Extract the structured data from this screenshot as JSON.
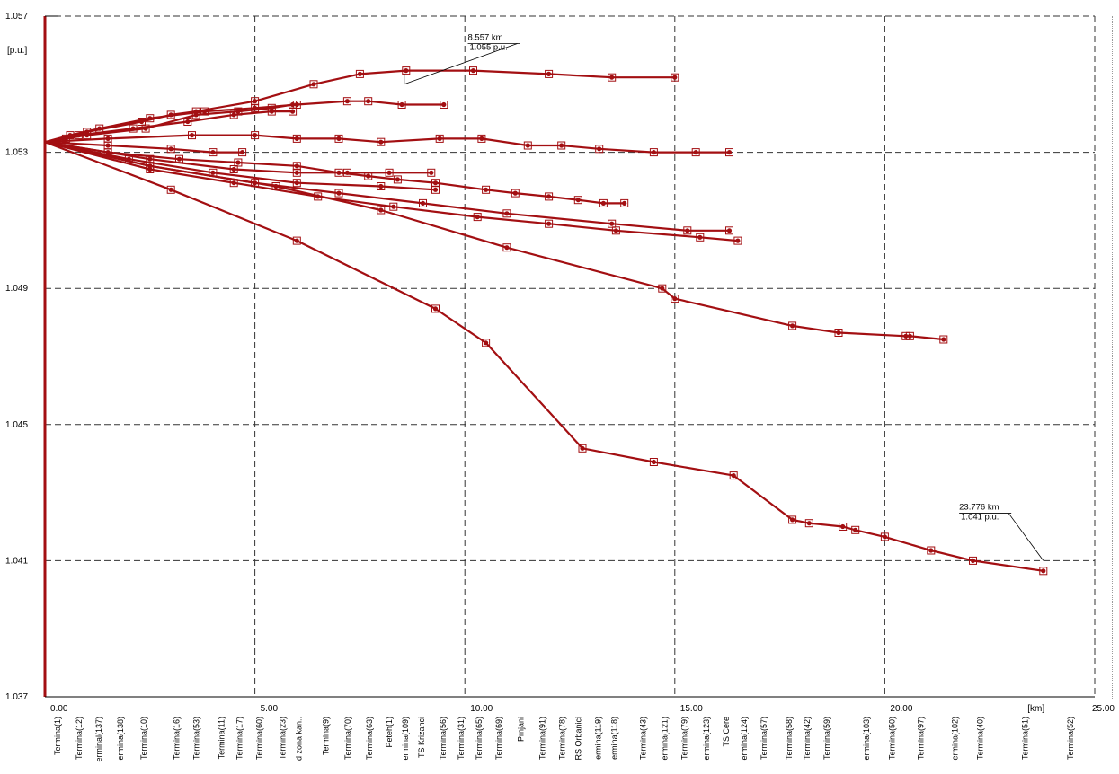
{
  "chart_data": {
    "type": "line",
    "title": "",
    "xlabel": "[km]",
    "ylabel": "[p.u.]",
    "xlim": [
      0,
      25
    ],
    "ylim": [
      1.037,
      1.057
    ],
    "x_ticks": [
      "0.00",
      "5.00",
      "10.00",
      "15.00",
      "20.00",
      "25.00"
    ],
    "x_tick_values": [
      0,
      5,
      10,
      15,
      20,
      25
    ],
    "y_ticks": [
      "1.037",
      "1.041",
      "1.045",
      "1.049",
      "1.053",
      "1.057"
    ],
    "y_tick_values": [
      1.037,
      1.041,
      1.045,
      1.049,
      1.053,
      1.057
    ],
    "grid": true,
    "line_color": "#a30f12",
    "series": [
      {
        "x": [
          0,
          0.5,
          1.0,
          2.3,
          3.0,
          3.6,
          5.0,
          6.4,
          7.5,
          8.6,
          10.2,
          12.0,
          13.5,
          15.0
        ],
        "y": [
          1.0533,
          1.0534,
          1.0536,
          1.0539,
          1.0541,
          1.0542,
          1.0545,
          1.055,
          1.0553,
          1.0554,
          1.0554,
          1.0553,
          1.0552,
          1.0552
        ]
      },
      {
        "x": [
          0,
          0.6,
          1.3,
          2.5,
          3.8,
          5.0,
          6.0,
          7.2,
          7.7,
          8.5,
          9.5
        ],
        "y": [
          1.0533,
          1.0535,
          1.0537,
          1.054,
          1.0542,
          1.0543,
          1.0544,
          1.0545,
          1.0545,
          1.0544,
          1.0544
        ]
      },
      {
        "x": [
          0,
          1.0,
          2.4,
          3.6,
          4.6,
          5.4,
          5.9
        ],
        "y": [
          1.0533,
          1.0535,
          1.0537,
          1.0541,
          1.0542,
          1.0543,
          1.0544
        ]
      },
      {
        "x": [
          0,
          0.8,
          2.1,
          3.4,
          4.5,
          5.4,
          5.9
        ],
        "y": [
          1.0533,
          1.0535,
          1.0537,
          1.0539,
          1.0541,
          1.0542,
          1.0542
        ]
      },
      {
        "x": [
          0,
          1.5,
          3.5,
          5.0,
          6.0,
          7.0,
          8.0,
          9.4,
          10.4,
          11.5,
          12.3,
          13.2,
          14.5,
          15.5,
          16.3
        ],
        "y": [
          1.0533,
          1.0534,
          1.0535,
          1.0535,
          1.0534,
          1.0534,
          1.0533,
          1.0534,
          1.0534,
          1.0532,
          1.0532,
          1.0531,
          1.053,
          1.053,
          1.053
        ]
      },
      {
        "x": [
          0,
          1.5,
          3.0,
          4.0,
          4.7
        ],
        "y": [
          1.0533,
          1.0532,
          1.0531,
          1.053,
          1.053
        ]
      },
      {
        "x": [
          0,
          1.5,
          3.2,
          4.6,
          6.0,
          7.0,
          7.7,
          8.4,
          9.3,
          10.5,
          11.2,
          12.0,
          12.7,
          13.3,
          13.8
        ],
        "y": [
          1.0533,
          1.053,
          1.0528,
          1.0527,
          1.0526,
          1.0524,
          1.0523,
          1.0522,
          1.0521,
          1.0519,
          1.0518,
          1.0517,
          1.0516,
          1.0515,
          1.0515
        ]
      },
      {
        "x": [
          0,
          2.5,
          4.5,
          6.0,
          7.2,
          8.2,
          9.2
        ],
        "y": [
          1.0533,
          1.0528,
          1.0525,
          1.0524,
          1.0524,
          1.0524,
          1.0524
        ]
      },
      {
        "x": [
          0,
          2.0,
          4.0,
          6.0,
          8.0,
          9.3
        ],
        "y": [
          1.0533,
          1.0528,
          1.0524,
          1.0521,
          1.052,
          1.0519
        ]
      },
      {
        "x": [
          0,
          2.5,
          4.5,
          6.5,
          8.3,
          10.3,
          12.0,
          13.6,
          15.6,
          16.5
        ],
        "y": [
          1.0533,
          1.0525,
          1.0521,
          1.0517,
          1.0514,
          1.0511,
          1.0509,
          1.0507,
          1.0505,
          1.0504
        ]
      },
      {
        "x": [
          0,
          2.5,
          5.0,
          7.0,
          9.0,
          11.0,
          13.5,
          15.3,
          16.3
        ],
        "y": [
          1.0533,
          1.0526,
          1.0521,
          1.0518,
          1.0515,
          1.0512,
          1.0509,
          1.0507,
          1.0507
        ]
      },
      {
        "x": [
          0,
          2.5,
          5.5,
          8.0,
          11.0,
          14.7,
          15.0,
          17.8,
          18.9,
          20.5,
          20.6,
          21.4
        ],
        "y": [
          1.0533,
          1.0526,
          1.052,
          1.0513,
          1.0502,
          1.049,
          1.0487,
          1.0479,
          1.0477,
          1.0476,
          1.0476,
          1.0475
        ]
      },
      {
        "x": [
          0,
          3.0,
          6.0,
          9.3,
          10.5,
          12.8,
          14.5,
          16.4,
          17.8,
          18.2,
          19.0,
          19.3,
          20.0,
          21.1,
          22.1,
          23.776
        ],
        "y": [
          1.0533,
          1.0519,
          1.0504,
          1.0484,
          1.0474,
          1.0443,
          1.0439,
          1.0435,
          1.0422,
          1.0421,
          1.042,
          1.0419,
          1.0417,
          1.0413,
          1.041,
          1.0407
        ]
      }
    ],
    "annotations": [
      {
        "x": 8.557,
        "y": 1.055,
        "lines": [
          "8.557 km",
          "1.055 p.u."
        ]
      },
      {
        "x": 23.776,
        "y": 1.041,
        "lines": [
          "23.776 km",
          "1.041 p.u."
        ]
      }
    ],
    "bottom_labels": [
      {
        "x": 0.0,
        "text": "Termina(1)"
      },
      {
        "x": 0.6,
        "text": "Termina(12)"
      },
      {
        "x": 1.15,
        "text": "erminal(137)"
      },
      {
        "x": 1.75,
        "text": "ermina(138)"
      },
      {
        "x": 2.4,
        "text": "Termina(10)"
      },
      {
        "x": 3.3,
        "text": "Termina(16)"
      },
      {
        "x": 3.85,
        "text": "Termina(53)"
      },
      {
        "x": 4.55,
        "text": "Termina(11)"
      },
      {
        "x": 5.05,
        "text": "Termina(17)"
      },
      {
        "x": 5.6,
        "text": "Termina(60)"
      },
      {
        "x": 6.25,
        "text": "Termina(23)"
      },
      {
        "x": 6.7,
        "text": "d zona kan.."
      },
      {
        "x": 7.45,
        "text": "Termina(9)"
      },
      {
        "x": 8.05,
        "text": "Termina(70)"
      },
      {
        "x": 8.65,
        "text": "Termina(63)"
      },
      {
        "x": 9.2,
        "text": "Peteh(1)"
      },
      {
        "x": 9.65,
        "text": "ermina(109)"
      },
      {
        "x": 10.1,
        "text": "TS Krizanci"
      },
      {
        "x": 10.7,
        "text": "Termina(56)"
      },
      {
        "x": 11.2,
        "text": "Termina(31)"
      },
      {
        "x": 11.7,
        "text": "Termina(65)"
      },
      {
        "x": 12.25,
        "text": "Termina(69)"
      },
      {
        "x": 12.85,
        "text": "Prnjani"
      },
      {
        "x": 13.45,
        "text": "Termina(91)"
      },
      {
        "x": 14.0,
        "text": "Termina(78)"
      },
      {
        "x": 14.45,
        "text": "RS Orbanici"
      },
      {
        "x": 15.0,
        "text": "ermina(119)"
      },
      {
        "x": 15.45,
        "text": "ermina(118)"
      },
      {
        "x": 16.25,
        "text": "Termina(43)"
      },
      {
        "x": 16.85,
        "text": "ermina(121)"
      },
      {
        "x": 17.4,
        "text": "Termina(79)"
      },
      {
        "x": 18.0,
        "text": "ermina(123)"
      },
      {
        "x": 18.55,
        "text": "TS Cere"
      },
      {
        "x": 19.05,
        "text": "ermina(124)"
      },
      {
        "x": 19.6,
        "text": "Termina(57)"
      },
      {
        "x": 20.3,
        "text": "Termina(58)"
      },
      {
        "x": 20.8,
        "text": "Termina(42)"
      },
      {
        "x": 21.35,
        "text": "Termina(59)"
      },
      {
        "x": 22.45,
        "text": "ermina(103)"
      },
      {
        "x": 23.15,
        "text": "Termina(50)"
      },
      {
        "x": 23.95,
        "text": "Termina(97)"
      },
      {
        "x": 24.9,
        "text": "ermina(102)"
      },
      {
        "x": 25.6,
        "text": "Termina(40)"
      },
      {
        "x": 26.85,
        "text": "Termina(51)"
      },
      {
        "x": 28.1,
        "text": "Termina(52)"
      }
    ]
  }
}
